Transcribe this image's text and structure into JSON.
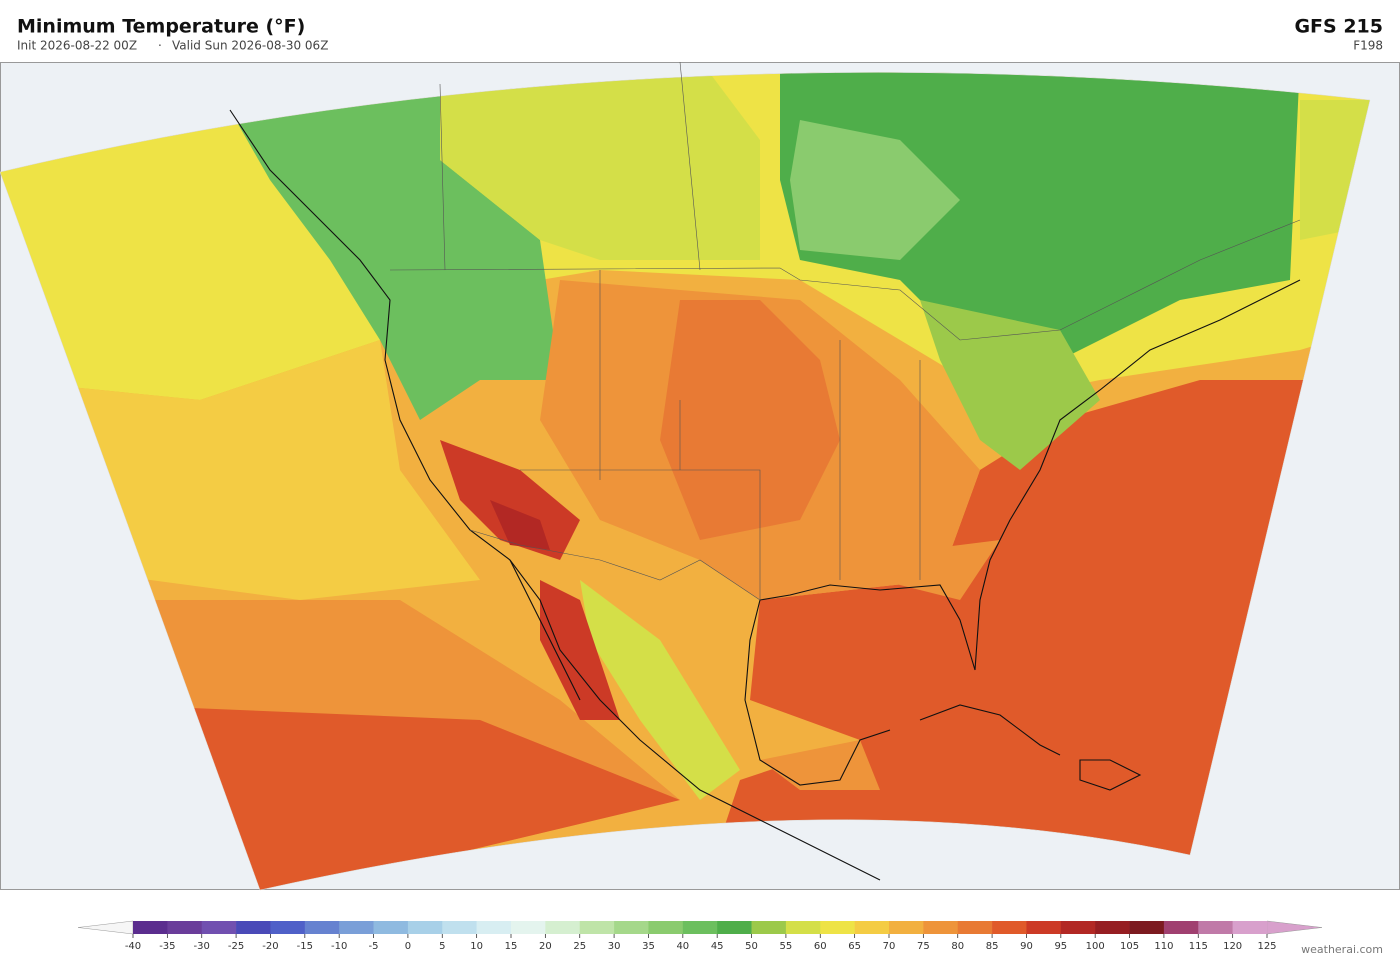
{
  "header": {
    "title": "Minimum Temperature  (°F)",
    "init": "Init 2026-08-22 00Z",
    "separator": "·",
    "valid": "Valid Sun 2026-08-30 06Z",
    "model": "GFS  215",
    "forecast": "F198"
  },
  "colorbar": {
    "ticks": [
      -40,
      -35,
      -30,
      -25,
      -20,
      -15,
      -10,
      -5,
      0,
      5,
      10,
      15,
      20,
      25,
      30,
      35,
      40,
      45,
      50,
      55,
      60,
      65,
      70,
      75,
      80,
      85,
      90,
      95,
      100,
      105,
      110,
      115,
      120,
      125
    ],
    "colors": [
      "#5b2d8e",
      "#6a3d9a",
      "#7150b0",
      "#4a4ab8",
      "#4f60c8",
      "#6682d0",
      "#7a9fd8",
      "#8fbae0",
      "#a8d0e8",
      "#c0e0ee",
      "#d8eef2",
      "#e4f4ee",
      "#d5efd0",
      "#bfe4a8",
      "#a5d88a",
      "#8acb6e",
      "#6cbf5e",
      "#4fae4a",
      "#9cc94a",
      "#d4df48",
      "#eee346",
      "#f4cc44",
      "#f2b040",
      "#ee943a",
      "#e87a34",
      "#e05a2a",
      "#cc3a26",
      "#b22824",
      "#961e22",
      "#7c1a20",
      "#a04070",
      "#c07aa8",
      "#d8a0cc"
    ],
    "extend_colors": [
      "#f6f6f6",
      "#d8a0cc"
    ]
  },
  "footer": {
    "credit": "weatherai.com"
  }
}
